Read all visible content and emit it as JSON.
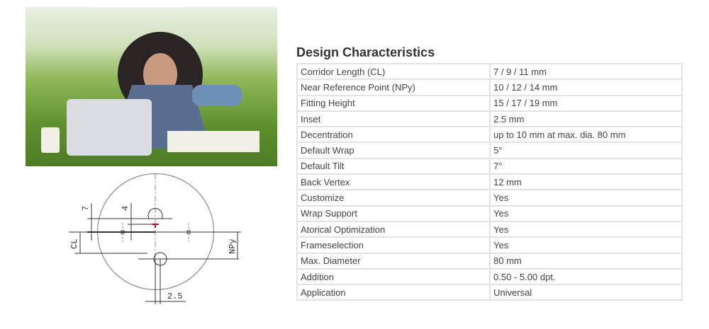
{
  "heading": "Design Characteristics",
  "rows": [
    {
      "label": "Corridor Length (CL)",
      "value": "7 / 9 / 11 mm"
    },
    {
      "label": "Near Reference Point (NPy)",
      "value": "10 / 12 / 14 mm"
    },
    {
      "label": "Fitting Height",
      "value": "15 / 17 / 19 mm"
    },
    {
      "label": "Inset",
      "value": "2.5 mm"
    },
    {
      "label": "Decentration",
      "value": "up to 10 mm at max. dia. 80 mm"
    },
    {
      "label": "Default Wrap",
      "value": "5°"
    },
    {
      "label": "Default Tilt",
      "value": "7°"
    },
    {
      "label": "Back Vertex",
      "value": "12 mm"
    },
    {
      "label": "Customize",
      "value": "Yes"
    },
    {
      "label": "Wrap Support",
      "value": "Yes"
    },
    {
      "label": "Atorical Optimization",
      "value": "Yes"
    },
    {
      "label": "Frameselection",
      "value": "Yes"
    },
    {
      "label": "Max. Diameter",
      "value": "80 mm"
    },
    {
      "label": "Addition",
      "value": "0.50 - 5.00 dpt."
    },
    {
      "label": "Application",
      "value": "Universal"
    }
  ],
  "diagram": {
    "label_7": "7",
    "label_4": "4",
    "label_cl": "CL",
    "label_npy": "NPy",
    "label_inset": "2.5"
  },
  "colors": {
    "marker": "#b0103a",
    "border": "#e3e3e3"
  }
}
